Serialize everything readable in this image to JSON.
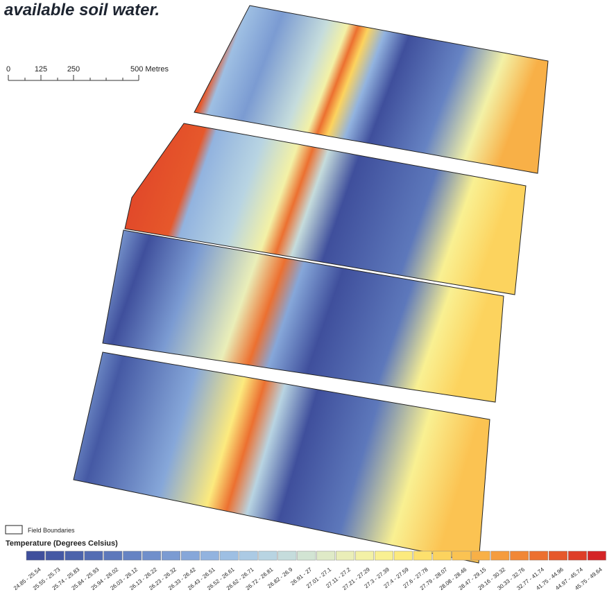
{
  "title": "available soil water.",
  "scale_bar": {
    "labels": [
      "0",
      "125",
      "250",
      "500 Metres"
    ]
  },
  "legend": {
    "boundary_label": "Field Boundaries",
    "title": "Temperature (Degrees Celsius)",
    "classes": [
      {
        "label": "24.85 - 25.54",
        "color": "#3f4f9c"
      },
      {
        "label": "25.55 - 25.73",
        "color": "#4559a4"
      },
      {
        "label": "25.74 - 25.83",
        "color": "#4c63ab"
      },
      {
        "label": "25.84 - 25.93",
        "color": "#546db3"
      },
      {
        "label": "25.94 - 26.02",
        "color": "#5d78bb"
      },
      {
        "label": "26.03 - 26.12",
        "color": "#6683c3"
      },
      {
        "label": "26.13 - 26.22",
        "color": "#708fcb"
      },
      {
        "label": "26.23 - 26.32",
        "color": "#7b9bd2"
      },
      {
        "label": "26.33 - 26.42",
        "color": "#86a7d9"
      },
      {
        "label": "26.43 - 26.51",
        "color": "#92b3df"
      },
      {
        "label": "26.52 - 26.61",
        "color": "#9ebfe3"
      },
      {
        "label": "26.62 - 26.71",
        "color": "#abcae4"
      },
      {
        "label": "26.72 - 26.81",
        "color": "#b8d4e2"
      },
      {
        "label": "26.82 - 26.9",
        "color": "#c5dcdc"
      },
      {
        "label": "26.91 - 27",
        "color": "#d2e4d3"
      },
      {
        "label": "27.01 - 27.1",
        "color": "#dfeac7"
      },
      {
        "label": "27.11 - 27.2",
        "color": "#eaeeb8"
      },
      {
        "label": "27.21 - 27.29",
        "color": "#f3f1a6"
      },
      {
        "label": "27.3 - 27.39",
        "color": "#f9f092"
      },
      {
        "label": "27.4 - 27.59",
        "color": "#fcea7e"
      },
      {
        "label": "27.6 - 27.78",
        "color": "#fde06d"
      },
      {
        "label": "27.79 - 28.07",
        "color": "#fcd35e"
      },
      {
        "label": "28.08 - 28.46",
        "color": "#fbc352"
      },
      {
        "label": "28.47 - 29.15",
        "color": "#f8b047"
      },
      {
        "label": "29.16 - 30.32",
        "color": "#f59c3e"
      },
      {
        "label": "30.33 - 32.76",
        "color": "#f18736"
      },
      {
        "label": "32.77 - 41.74",
        "color": "#ec7030"
      },
      {
        "label": "41.75 - 44.96",
        "color": "#e6582b"
      },
      {
        "label": "44.97 - 45.74",
        "color": "#de3e28"
      },
      {
        "label": "45.75 - 49.64",
        "color": "#d42426"
      }
    ]
  }
}
